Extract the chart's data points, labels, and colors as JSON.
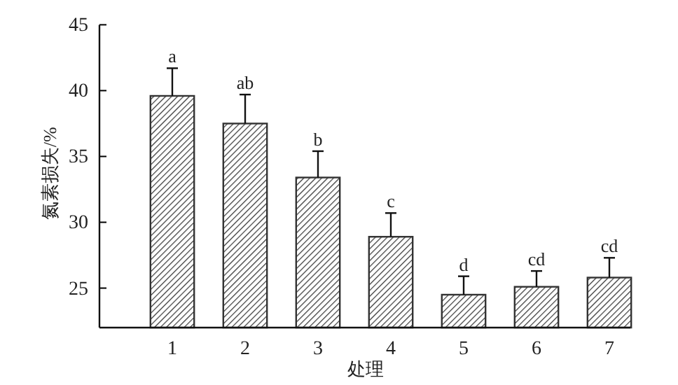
{
  "chart_data": {
    "type": "bar",
    "xlabel": "处理",
    "ylabel": "氮素损失/%",
    "categories": [
      "1",
      "2",
      "3",
      "4",
      "5",
      "6",
      "7"
    ],
    "values": [
      39.6,
      37.5,
      33.4,
      28.9,
      24.5,
      25.1,
      25.8
    ],
    "errors": [
      2.1,
      2.2,
      2.0,
      1.8,
      1.4,
      1.2,
      1.5
    ],
    "color": "#333333",
    "ylim": [
      22,
      45
    ],
    "yticks": [
      25,
      30,
      35,
      40,
      45
    ],
    "annotations": [
      {
        "text": "a",
        "x": "1",
        "y": 41.7
      },
      {
        "text": "ab",
        "x": "2",
        "y": 39.7
      },
      {
        "text": "b",
        "x": "3",
        "y": 35.4
      },
      {
        "text": "c",
        "x": "4",
        "y": 30.7
      },
      {
        "text": "d",
        "x": "5",
        "y": 25.9
      },
      {
        "text": "cd",
        "x": "6",
        "y": 26.3
      },
      {
        "text": "cd",
        "x": "7",
        "y": 27.3
      }
    ]
  }
}
